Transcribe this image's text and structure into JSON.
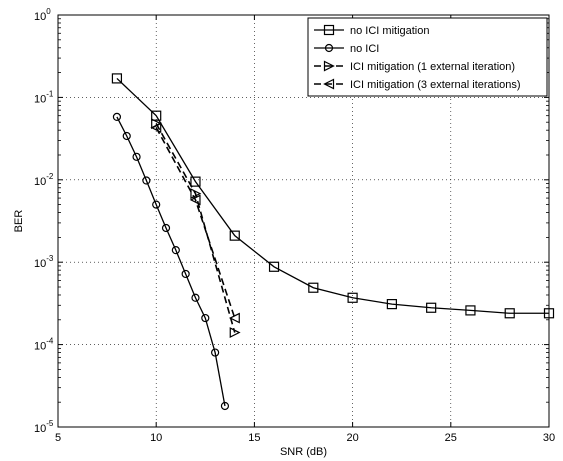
{
  "chart_data": {
    "type": "line",
    "title": "",
    "xlabel": "SNR (dB)",
    "ylabel": "BER",
    "xlim": [
      5,
      30
    ],
    "ylim": [
      1e-05,
      1
    ],
    "yscale": "log",
    "grid": true,
    "legend_position": "top-right",
    "xticks": [
      5,
      10,
      15,
      20,
      25,
      30
    ],
    "xtick_labels": [
      "5",
      "10",
      "15",
      "20",
      "25",
      "30"
    ],
    "yticks": [
      1e-05,
      0.0001,
      0.001,
      0.01,
      0.1,
      1
    ],
    "ytick_labels": [
      {
        "base": "10",
        "exp": "-5"
      },
      {
        "base": "10",
        "exp": "-4"
      },
      {
        "base": "10",
        "exp": "-3"
      },
      {
        "base": "10",
        "exp": "-2"
      },
      {
        "base": "10",
        "exp": "-1"
      },
      {
        "base": "10",
        "exp": "0"
      }
    ],
    "series": [
      {
        "name": "no ICI mitigation",
        "marker": "square",
        "dash": "solid",
        "x": [
          8,
          10,
          12,
          14,
          16,
          18,
          20,
          22,
          24,
          26,
          28,
          30
        ],
        "y": [
          0.17,
          0.06,
          0.0095,
          0.0021,
          0.00088,
          0.00049,
          0.00037,
          0.00031,
          0.00028,
          0.00026,
          0.00024,
          0.00024
        ]
      },
      {
        "name": "no ICI",
        "marker": "circle",
        "dash": "solid",
        "x": [
          8,
          8.5,
          9,
          9.5,
          10,
          10.5,
          11,
          11.5,
          12,
          12.5,
          13,
          13.5
        ],
        "y": [
          0.058,
          0.034,
          0.019,
          0.0098,
          0.005,
          0.0026,
          0.0014,
          0.00072,
          0.00037,
          0.00021,
          8e-05,
          1.8e-05
        ]
      },
      {
        "name": "ICI mitigation (1 external iteration)",
        "marker": "triangle-right",
        "dash": "dashed",
        "x": [
          10,
          12,
          14
        ],
        "y": [
          0.048,
          0.0068,
          0.00014
        ]
      },
      {
        "name": "ICI mitigation (3 external iterations)",
        "marker": "triangle-left",
        "dash": "dashed",
        "x": [
          10,
          12,
          14
        ],
        "y": [
          0.043,
          0.0057,
          0.00021
        ]
      }
    ]
  }
}
